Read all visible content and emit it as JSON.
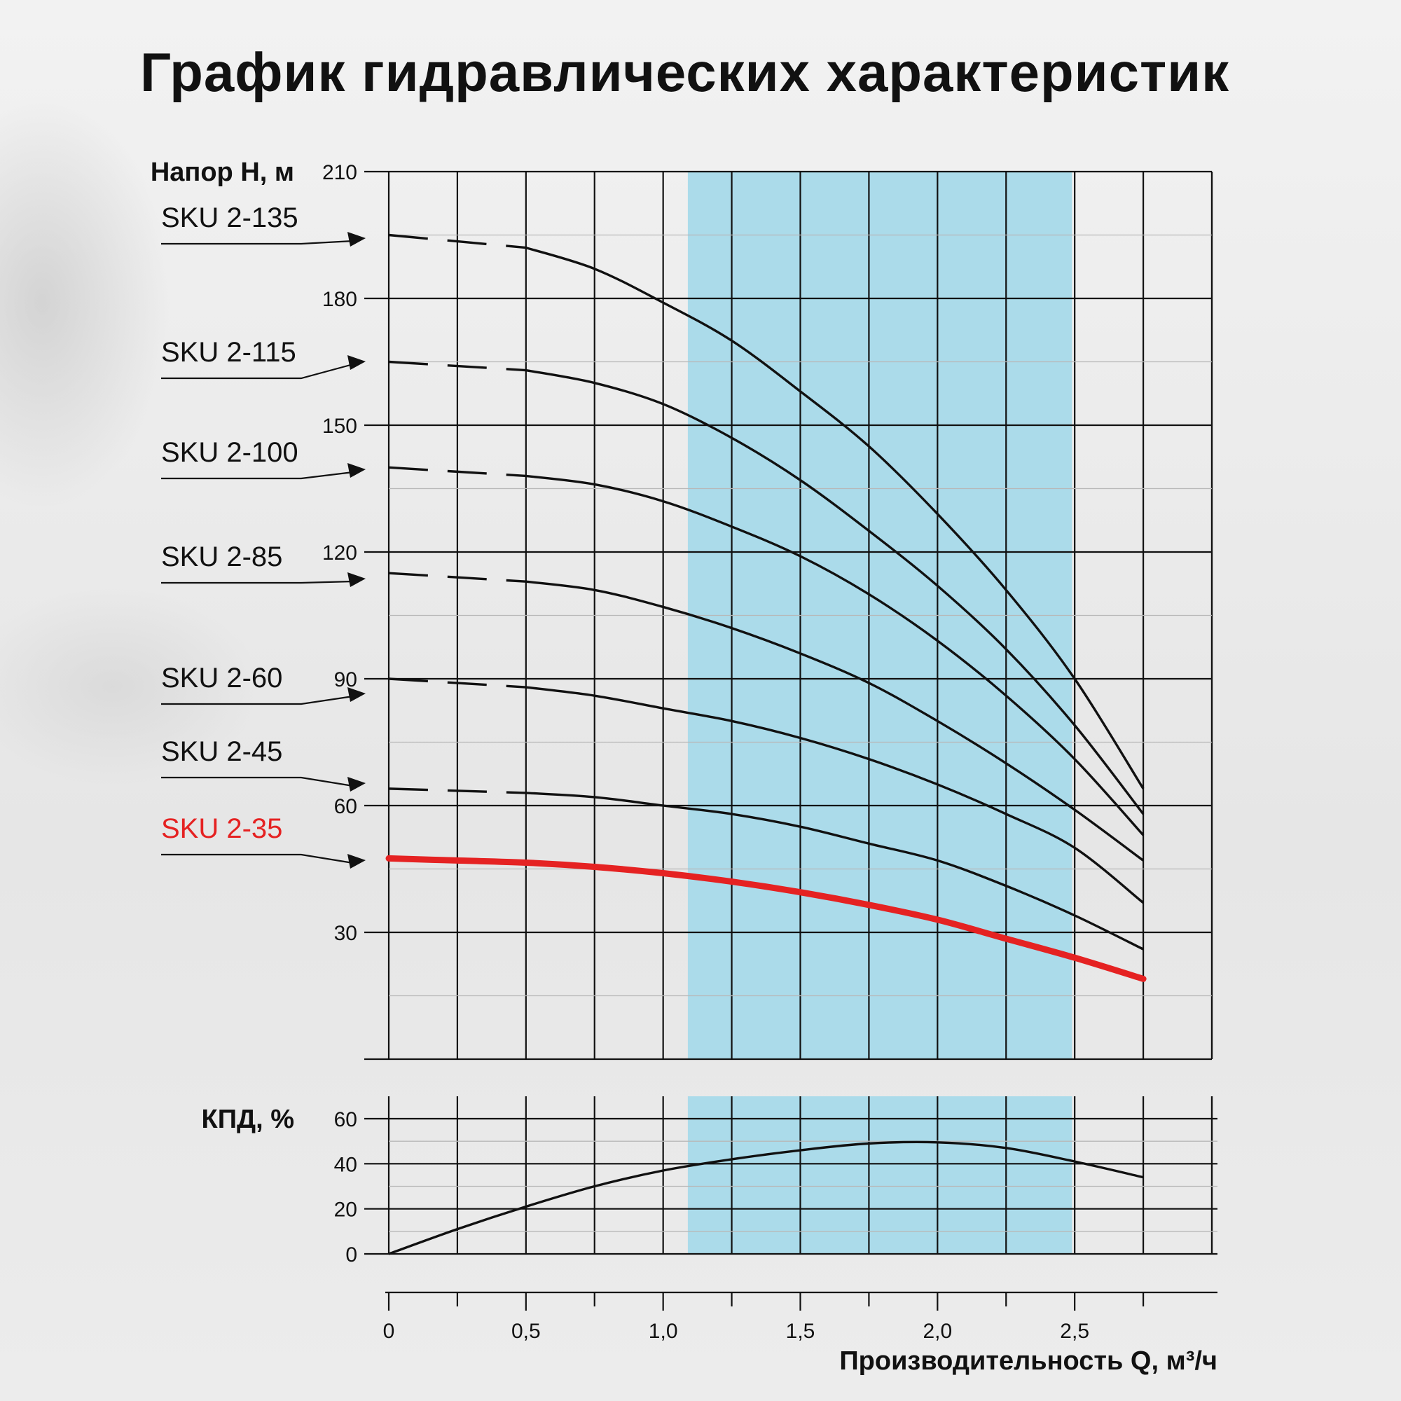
{
  "title": "График гидравлических характеристик",
  "chart_data": [
    {
      "type": "line",
      "ylabel": "Напор H, м",
      "xlim": [
        0,
        3.0
      ],
      "ylim": [
        0,
        210
      ],
      "y_ticks": [
        30,
        60,
        90,
        120,
        150,
        180,
        210
      ],
      "y_tick_labels": [
        "30",
        "60",
        "90",
        "120",
        "150",
        "180",
        "210"
      ],
      "highlight_band": {
        "from": 1.09,
        "to": 2.49,
        "color": "#abdbea"
      },
      "grid": true,
      "series": [
        {
          "name": "SKU 2-135",
          "color": "#111111",
          "dashed_until": 0.5,
          "x": [
            0,
            0.5,
            0.75,
            1.0,
            1.25,
            1.5,
            1.75,
            2.0,
            2.25,
            2.5,
            2.75
          ],
          "y": [
            195,
            192,
            187,
            179,
            170,
            158,
            145,
            129,
            111,
            90,
            64
          ]
        },
        {
          "name": "SKU 2-115",
          "color": "#111111",
          "dashed_until": 0.5,
          "x": [
            0,
            0.5,
            0.75,
            1.0,
            1.25,
            1.5,
            1.75,
            2.0,
            2.25,
            2.5,
            2.75
          ],
          "y": [
            165,
            163,
            160,
            155,
            147,
            137,
            125,
            112,
            97,
            79,
            58
          ]
        },
        {
          "name": "SKU 2-100",
          "color": "#111111",
          "dashed_until": 0.5,
          "x": [
            0,
            0.5,
            0.75,
            1.0,
            1.25,
            1.5,
            1.75,
            2.0,
            2.25,
            2.5,
            2.75
          ],
          "y": [
            140,
            138,
            136,
            132,
            126,
            119,
            110,
            99,
            86,
            71,
            53
          ]
        },
        {
          "name": "SKU 2-85",
          "color": "#111111",
          "dashed_until": 0.5,
          "x": [
            0,
            0.5,
            0.75,
            1.0,
            1.25,
            1.5,
            1.75,
            2.0,
            2.25,
            2.5,
            2.75
          ],
          "y": [
            115,
            113,
            111,
            107,
            102,
            96,
            89,
            80,
            70,
            59,
            47
          ]
        },
        {
          "name": "SKU 2-60",
          "color": "#111111",
          "dashed_until": 0.5,
          "x": [
            0,
            0.5,
            0.75,
            1.0,
            1.25,
            1.5,
            1.75,
            2.0,
            2.25,
            2.5,
            2.75
          ],
          "y": [
            90,
            88,
            86,
            83,
            80,
            76,
            71,
            65,
            58,
            50,
            37
          ]
        },
        {
          "name": "SKU 2-45",
          "color": "#111111",
          "dashed_until": 0.5,
          "x": [
            0,
            0.5,
            0.75,
            1.0,
            1.25,
            1.5,
            1.75,
            2.0,
            2.25,
            2.5,
            2.75
          ],
          "y": [
            64,
            63,
            62,
            60,
            58,
            55,
            51,
            47,
            41,
            34,
            26
          ]
        },
        {
          "name": "SKU 2-35",
          "color": "#e52222",
          "dashed_until": 0,
          "x": [
            0,
            0.25,
            0.5,
            0.75,
            1.0,
            1.25,
            1.5,
            1.75,
            2.0,
            2.25,
            2.5,
            2.75
          ],
          "y": [
            47.5,
            47,
            46.5,
            45.5,
            44,
            42,
            39.5,
            36.5,
            33,
            28.5,
            24,
            19
          ]
        }
      ]
    },
    {
      "type": "line",
      "ylabel": "КПД, %",
      "xlabel": "Производительность Q, м³/ч",
      "xlim": [
        0,
        3.0
      ],
      "ylim": [
        0,
        70
      ],
      "y_ticks": [
        0,
        20,
        40,
        60
      ],
      "y_tick_labels": [
        "0",
        "20",
        "40",
        "60"
      ],
      "x_tick_labels": [
        "0",
        "0,5",
        "1,0",
        "1,5",
        "2,0",
        "2,5"
      ],
      "highlight_band": {
        "from": 1.09,
        "to": 2.49,
        "color": "#abdbea"
      },
      "grid": true,
      "series": [
        {
          "color": "#111111",
          "x": [
            0,
            0.25,
            0.5,
            0.75,
            1.0,
            1.25,
            1.5,
            1.75,
            2.0,
            2.25,
            2.5,
            2.75
          ],
          "y": [
            0,
            11,
            21,
            30,
            37,
            42,
            46,
            49,
            49.5,
            47,
            41,
            34
          ]
        }
      ]
    }
  ]
}
